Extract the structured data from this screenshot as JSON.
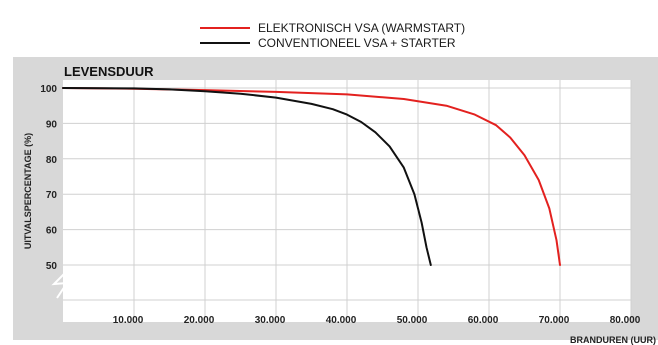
{
  "chart_data": {
    "type": "line",
    "title": "LEVENSDUUR",
    "xlabel": "BRANDUREN (UUR)",
    "ylabel": "UITVALSPERCENTAGE (%)",
    "xlim": [
      0,
      80000
    ],
    "ylim": [
      50,
      100
    ],
    "x_ticks": [
      "10.000",
      "20.000",
      "30.000",
      "40.000",
      "50.000",
      "60.000",
      "70.000",
      "80.000"
    ],
    "y_ticks": [
      "100",
      "90",
      "80",
      "70",
      "60",
      "50"
    ],
    "axis_break": true,
    "grid": true,
    "legend_position": "top-center",
    "series": [
      {
        "name": "ELEKTRONISCH VSA (WARMSTART)",
        "color": "#e3211f",
        "x": [
          0,
          10000,
          20000,
          30000,
          40000,
          48000,
          54000,
          58000,
          61000,
          63000,
          65000,
          67000,
          68500,
          69500,
          70000
        ],
        "y": [
          100,
          99.8,
          99.4,
          98.9,
          98.2,
          96.9,
          95,
          92.5,
          89.5,
          86,
          81,
          74,
          66,
          57,
          50
        ]
      },
      {
        "name": "CONVENTIONEEL VSA + STARTER",
        "color": "#111111",
        "x": [
          0,
          10000,
          15000,
          20000,
          25000,
          30000,
          35000,
          38000,
          40000,
          42000,
          44000,
          46000,
          48000,
          49500,
          50500,
          51200,
          51800
        ],
        "y": [
          100,
          99.9,
          99.6,
          99.1,
          98.4,
          97.3,
          95.5,
          94,
          92.5,
          90.4,
          87.5,
          83.5,
          77.5,
          70,
          62,
          55,
          50
        ]
      }
    ]
  }
}
